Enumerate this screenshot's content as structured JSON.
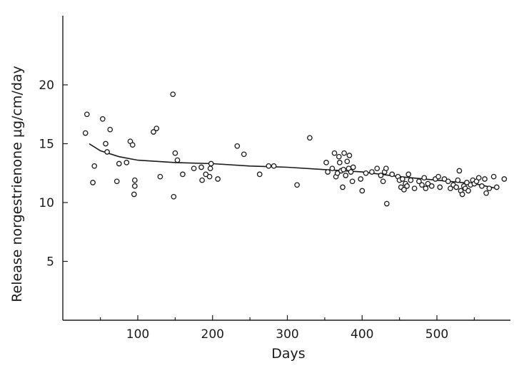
{
  "chart_data": {
    "type": "scatter",
    "xlabel": "Days",
    "ylabel": "Release norgestrienone µg/cm/day",
    "xlim": [
      0,
      600
    ],
    "ylim": [
      0,
      26
    ],
    "x_ticks": [
      100,
      200,
      300,
      400,
      500
    ],
    "y_ticks": [
      5,
      10,
      15,
      20
    ],
    "grid": false,
    "series": [
      {
        "kind": "points",
        "points": [
          [
            30,
            15.9
          ],
          [
            32,
            17.5
          ],
          [
            40,
            11.7
          ],
          [
            42,
            13.1
          ],
          [
            53,
            17.1
          ],
          [
            57,
            15.0
          ],
          [
            59,
            14.3
          ],
          [
            63,
            16.2
          ],
          [
            72,
            11.8
          ],
          [
            75,
            13.3
          ],
          [
            85,
            13.4
          ],
          [
            90,
            15.2
          ],
          [
            93,
            14.9
          ],
          [
            95,
            10.7
          ],
          [
            96,
            11.4
          ],
          [
            96,
            11.9
          ],
          [
            121,
            16.0
          ],
          [
            125,
            16.3
          ],
          [
            130,
            12.2
          ],
          [
            147,
            19.2
          ],
          [
            148,
            10.5
          ],
          [
            150,
            14.2
          ],
          [
            153,
            13.6
          ],
          [
            160,
            12.4
          ],
          [
            175,
            12.9
          ],
          [
            185,
            13.0
          ],
          [
            186,
            11.9
          ],
          [
            191,
            12.4
          ],
          [
            196,
            12.2
          ],
          [
            197,
            12.9
          ],
          [
            198,
            13.3
          ],
          [
            207,
            12.0
          ],
          [
            233,
            14.8
          ],
          [
            242,
            14.1
          ],
          [
            263,
            12.4
          ],
          [
            275,
            13.1
          ],
          [
            282,
            13.1
          ],
          [
            313,
            11.5
          ],
          [
            330,
            15.5
          ],
          [
            352,
            13.4
          ],
          [
            354,
            12.6
          ],
          [
            360,
            12.9
          ],
          [
            363,
            14.2
          ],
          [
            365,
            12.2
          ],
          [
            367,
            12.5
          ],
          [
            369,
            13.9
          ],
          [
            370,
            13.4
          ],
          [
            372,
            12.7
          ],
          [
            374,
            11.3
          ],
          [
            375,
            12.8
          ],
          [
            376,
            14.2
          ],
          [
            378,
            12.3
          ],
          [
            380,
            13.5
          ],
          [
            382,
            12.9
          ],
          [
            383,
            14.0
          ],
          [
            385,
            12.6
          ],
          [
            387,
            11.8
          ],
          [
            388,
            13.0
          ],
          [
            398,
            12.0
          ],
          [
            400,
            11.0
          ],
          [
            405,
            12.5
          ],
          [
            413,
            12.6
          ],
          [
            420,
            12.9
          ],
          [
            425,
            12.3
          ],
          [
            428,
            11.8
          ],
          [
            430,
            12.6
          ],
          [
            432,
            12.9
          ],
          [
            433,
            9.9
          ],
          [
            440,
            12.4
          ],
          [
            448,
            12.2
          ],
          [
            450,
            11.9
          ],
          [
            452,
            11.3
          ],
          [
            454,
            12.0
          ],
          [
            456,
            11.1
          ],
          [
            458,
            11.6
          ],
          [
            460,
            11.4
          ],
          [
            462,
            12.4
          ],
          [
            465,
            11.9
          ],
          [
            470,
            11.2
          ],
          [
            476,
            11.8
          ],
          [
            480,
            11.5
          ],
          [
            483,
            12.1
          ],
          [
            485,
            11.2
          ],
          [
            488,
            11.6
          ],
          [
            493,
            11.4
          ],
          [
            498,
            12.0
          ],
          [
            502,
            12.2
          ],
          [
            504,
            11.3
          ],
          [
            510,
            12.0
          ],
          [
            515,
            11.8
          ],
          [
            518,
            11.2
          ],
          [
            522,
            11.5
          ],
          [
            526,
            11.3
          ],
          [
            528,
            11.9
          ],
          [
            530,
            12.7
          ],
          [
            532,
            11.0
          ],
          [
            534,
            10.7
          ],
          [
            536,
            11.4
          ],
          [
            538,
            11.2
          ],
          [
            540,
            11.7
          ],
          [
            542,
            11.0
          ],
          [
            545,
            11.5
          ],
          [
            548,
            11.9
          ],
          [
            550,
            11.6
          ],
          [
            553,
            11.8
          ],
          [
            556,
            12.1
          ],
          [
            560,
            11.4
          ],
          [
            564,
            12.0
          ],
          [
            566,
            10.8
          ],
          [
            570,
            11.2
          ],
          [
            576,
            12.2
          ],
          [
            580,
            11.3
          ],
          [
            590,
            12.0
          ]
        ]
      },
      {
        "kind": "fitted-curve",
        "points": [
          [
            35,
            15.0
          ],
          [
            50,
            14.4
          ],
          [
            75,
            13.9
          ],
          [
            100,
            13.6
          ],
          [
            150,
            13.4
          ],
          [
            200,
            13.3
          ],
          [
            250,
            13.1
          ],
          [
            300,
            13.0
          ],
          [
            350,
            12.8
          ],
          [
            400,
            12.6
          ],
          [
            450,
            12.2
          ],
          [
            500,
            11.9
          ],
          [
            550,
            11.6
          ],
          [
            580,
            11.2
          ]
        ]
      }
    ]
  }
}
